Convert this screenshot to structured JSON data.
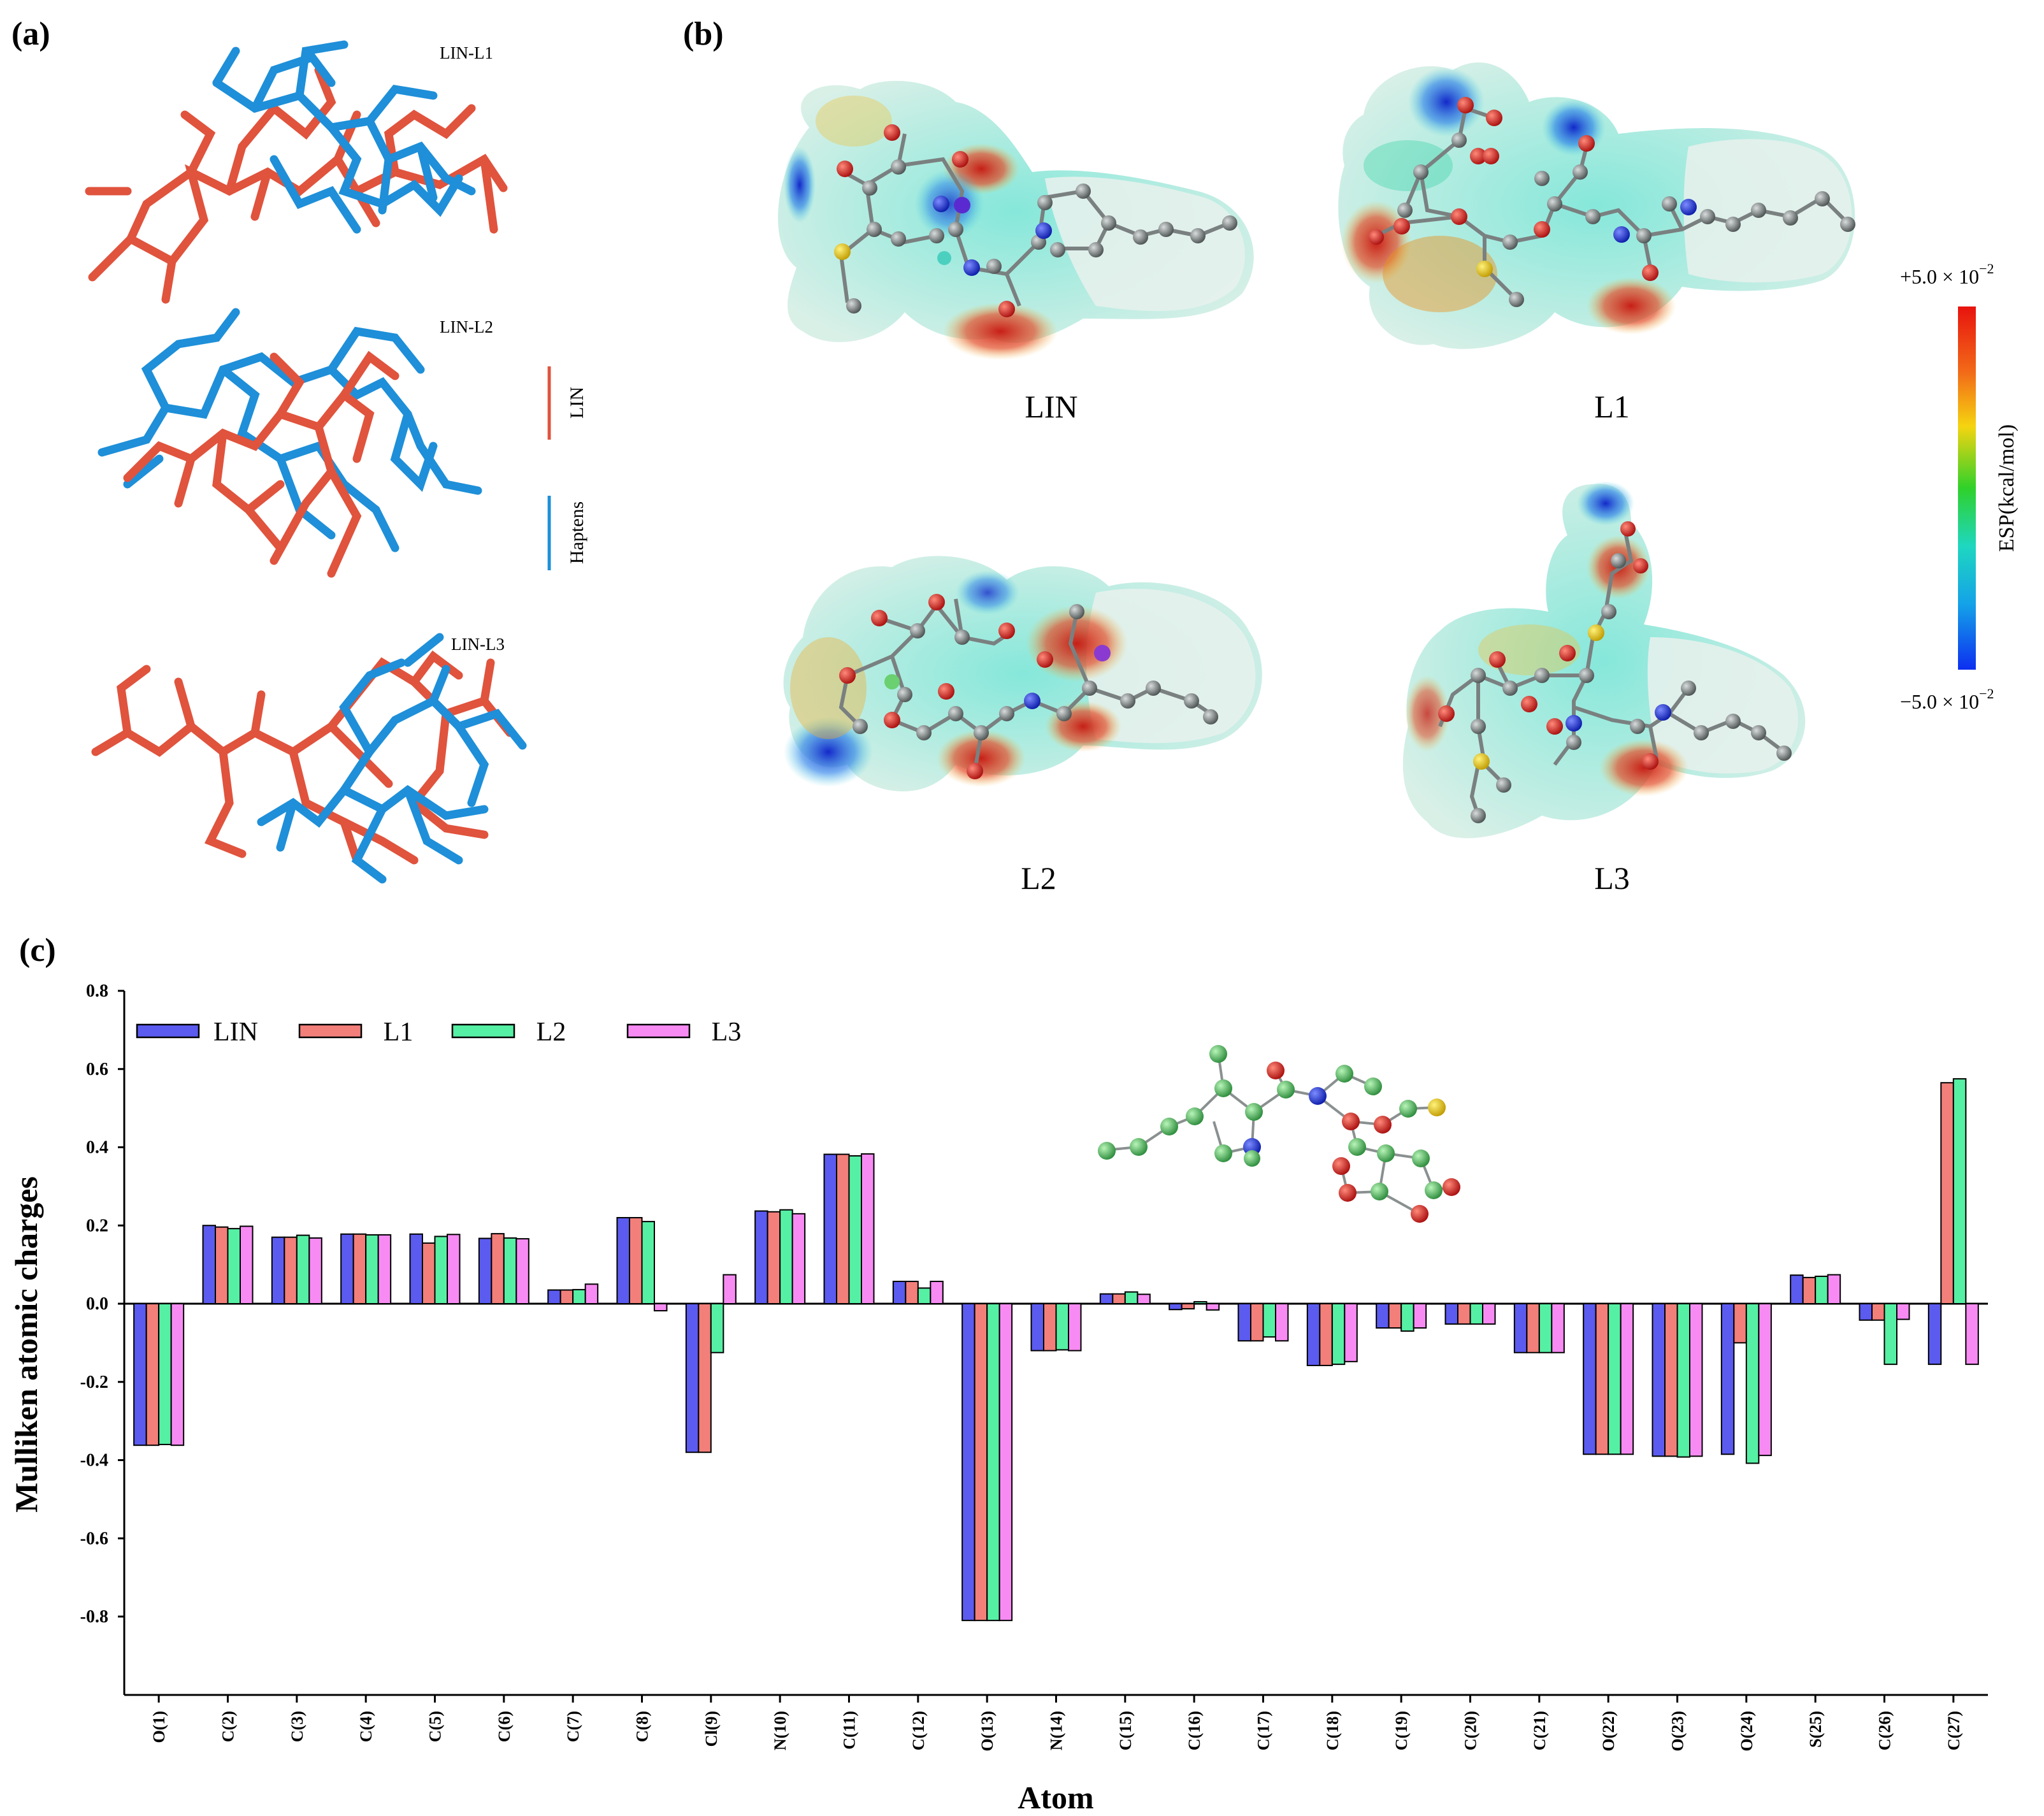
{
  "panels": {
    "a": {
      "label": "(a)",
      "overlays": [
        "LIN-L1",
        "LIN-L2",
        "LIN-L3"
      ],
      "legend": [
        {
          "name": "LIN",
          "color": "#e0533d"
        },
        {
          "name": "Haptens",
          "color": "#1e8fd8"
        }
      ]
    },
    "b": {
      "label": "(b)",
      "molecules": [
        "LIN",
        "L1",
        "L2",
        "L3"
      ],
      "colorbar": {
        "title": "ESP(kcal/mol)",
        "max_label": "+5.0 × 10",
        "min_label": "−5.0 × 10",
        "exponent": "−2"
      }
    },
    "c": {
      "label": "(c)"
    }
  },
  "chart_data": {
    "type": "bar",
    "title": "",
    "xlabel": "Atom",
    "ylabel": "Mulliken atomic charges",
    "ylim": [
      -1.0,
      0.8
    ],
    "yticks": [
      0.8,
      0.6,
      0.4,
      0.2,
      0.0,
      -0.2,
      -0.4,
      -0.6,
      -0.8
    ],
    "ytick_labels": [
      "0.8",
      "0.6",
      "0.4",
      "0.2",
      "0.0",
      "-0.2",
      "-0.4",
      "-0.6",
      "-0.8"
    ],
    "legend_position": "top-left",
    "categories": [
      "O(1)",
      "C(2)",
      "C(3)",
      "C(4)",
      "C(5)",
      "C(6)",
      "C(7)",
      "C(8)",
      "Cl(9)",
      "N(10)",
      "C(11)",
      "C(12)",
      "O(13)",
      "N(14)",
      "C(15)",
      "C(16)",
      "C(17)",
      "C(18)",
      "C(19)",
      "C(20)",
      "C(21)",
      "O(22)",
      "O(23)",
      "O(24)",
      "S(25)",
      "C(26)",
      "C(27)"
    ],
    "series": [
      {
        "name": "LIN",
        "color": "#5b5bf0",
        "values": [
          -0.362,
          0.2,
          0.17,
          0.178,
          0.178,
          0.167,
          0.035,
          0.22,
          -0.38,
          0.237,
          0.382,
          0.057,
          -0.81,
          -0.12,
          0.025,
          -0.015,
          -0.095,
          -0.158,
          -0.062,
          -0.052,
          -0.125,
          -0.385,
          -0.39,
          -0.385,
          0.073,
          -0.042,
          -0.155
        ]
      },
      {
        "name": "L1",
        "color": "#f27f7a",
        "values": [
          -0.362,
          0.196,
          0.17,
          0.178,
          0.155,
          0.179,
          0.035,
          0.22,
          -0.38,
          0.235,
          0.382,
          0.057,
          -0.81,
          -0.12,
          0.025,
          -0.013,
          -0.095,
          -0.158,
          -0.062,
          -0.052,
          -0.125,
          -0.385,
          -0.39,
          -0.1,
          0.067,
          -0.042,
          0.565
        ]
      },
      {
        "name": "L2",
        "color": "#56f0a4",
        "values": [
          -0.36,
          0.192,
          0.175,
          0.176,
          0.172,
          0.168,
          0.036,
          0.21,
          -0.125,
          0.24,
          0.378,
          0.04,
          -0.81,
          -0.118,
          0.03,
          0.005,
          -0.085,
          -0.155,
          -0.07,
          -0.052,
          -0.125,
          -0.385,
          -0.392,
          -0.408,
          0.07,
          -0.155,
          0.575
        ]
      },
      {
        "name": "L3",
        "color": "#f78bf3",
        "values": [
          -0.362,
          0.198,
          0.168,
          0.176,
          0.177,
          0.166,
          0.05,
          -0.018,
          0.074,
          0.23,
          0.383,
          0.057,
          -0.81,
          -0.12,
          0.024,
          -0.016,
          -0.095,
          -0.148,
          -0.062,
          -0.052,
          -0.125,
          -0.385,
          -0.39,
          -0.388,
          0.074,
          -0.04,
          -0.155
        ]
      }
    ]
  }
}
